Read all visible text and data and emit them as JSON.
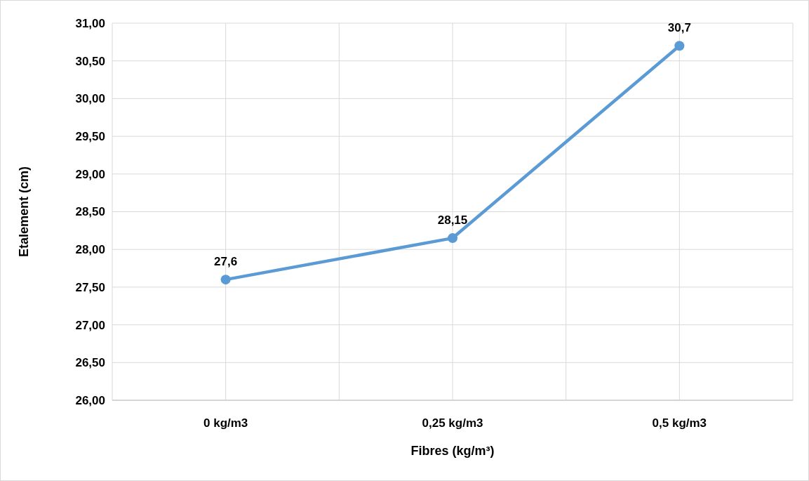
{
  "chart_data": {
    "type": "line",
    "xlabel": "Fibres (kg/m³)",
    "ylabel": "Etalement (cm)",
    "categories": [
      "0 kg/m3",
      "0,25 kg/m3",
      "0,5 kg/m3"
    ],
    "series": [
      {
        "color": "#5b9bd5",
        "values": [
          27.6,
          28.15,
          30.7
        ],
        "value_labels": [
          "27,6",
          "28,15",
          "30,7"
        ]
      }
    ],
    "ylim": [
      26,
      31
    ],
    "yticks": [
      {
        "value": 26,
        "label": "26,00"
      },
      {
        "value": 26.5,
        "label": "26,50"
      },
      {
        "value": 27,
        "label": "27,00"
      },
      {
        "value": 27.5,
        "label": "27,50"
      },
      {
        "value": 28,
        "label": "28,00"
      },
      {
        "value": 28.5,
        "label": "28,50"
      },
      {
        "value": 29,
        "label": "29,00"
      },
      {
        "value": 29.5,
        "label": "29,50"
      },
      {
        "value": 30,
        "label": "30,00"
      },
      {
        "value": 30.5,
        "label": "30,50"
      },
      {
        "value": 31,
        "label": "31,00"
      }
    ],
    "grid": true,
    "marker": "circle",
    "line_style": "solid"
  }
}
